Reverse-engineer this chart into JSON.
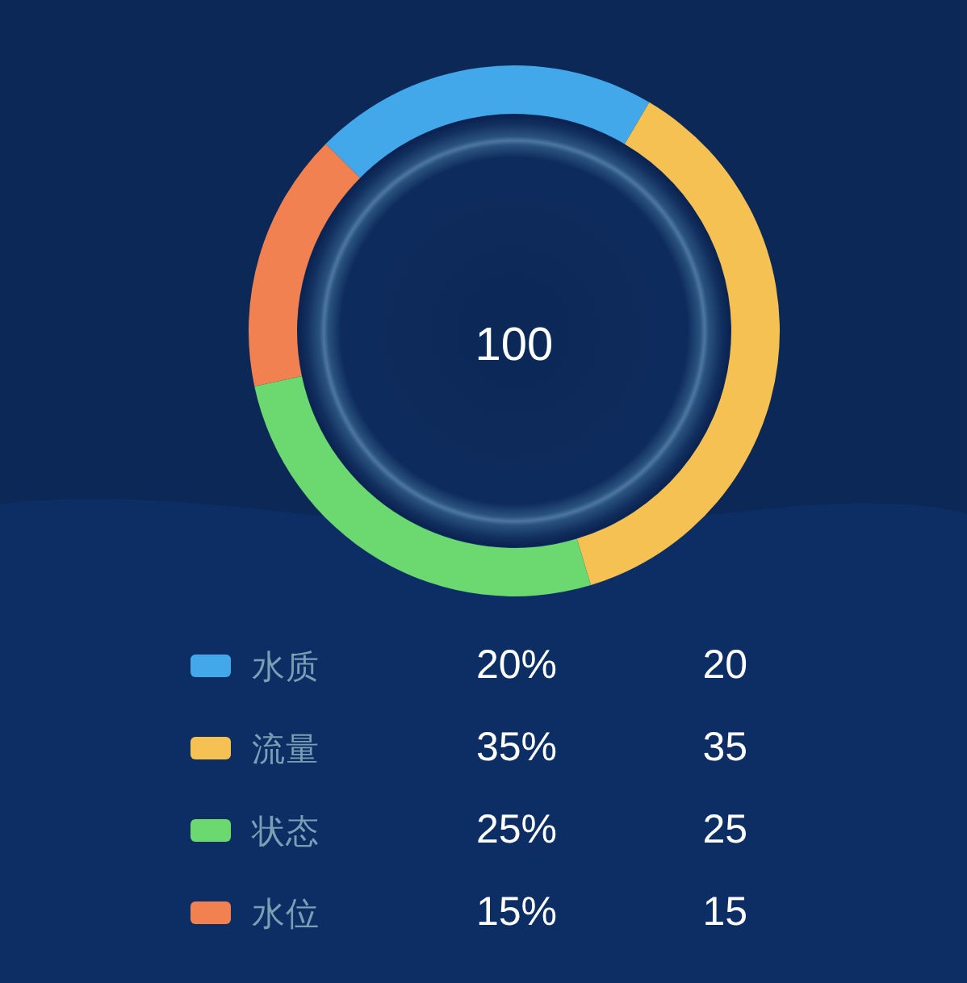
{
  "chart_data": {
    "type": "donut",
    "categories": [
      "水质",
      "流量",
      "状态",
      "水位"
    ],
    "values": [
      20,
      35,
      25,
      15
    ],
    "colors": [
      "#42a8e9",
      "#f4c152",
      "#6cd970",
      "#f28152"
    ],
    "data_labels": true,
    "annotations": [
      "100",
      "20%",
      "35%",
      "25%",
      "15%"
    ],
    "legend": "bottom"
  }
}
